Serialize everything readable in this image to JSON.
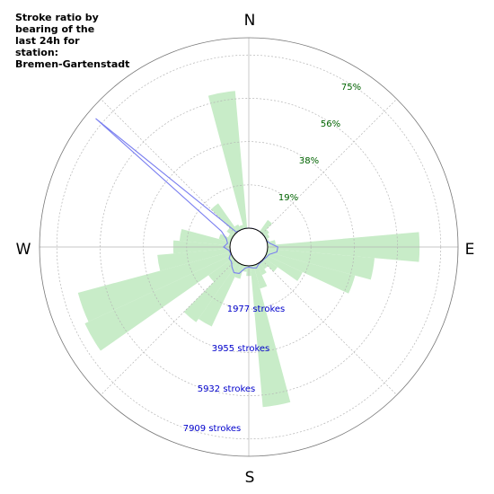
{
  "chart_data": {
    "type": "polar",
    "title_lines": [
      "Stroke ratio by",
      "bearing of the",
      "last 24h for",
      "station:",
      "Bremen-Gartenstadt"
    ],
    "directions": [
      "N",
      "E",
      "S",
      "W"
    ],
    "ratio_ticks": [
      "19%",
      "38%",
      "56%",
      "75%"
    ],
    "stroke_ticks": [
      "1977 strokes",
      "3955 strokes",
      "5932 strokes",
      "7909 strokes"
    ],
    "bins": {
      "width_deg": 10,
      "bearing_deg": [
        0,
        10,
        20,
        30,
        40,
        50,
        60,
        70,
        80,
        90,
        100,
        110,
        120,
        130,
        140,
        150,
        160,
        170,
        180,
        190,
        200,
        210,
        220,
        230,
        240,
        250,
        260,
        270,
        280,
        290,
        300,
        310,
        320,
        330,
        340,
        350
      ],
      "ratio_percent": [
        0,
        0,
        0,
        0,
        7,
        3,
        2,
        1,
        4,
        75,
        53,
        45,
        20,
        8,
        4,
        6,
        12,
        70,
        5,
        3,
        7,
        34,
        36,
        15,
        80,
        78,
        36,
        28,
        25,
        6,
        2,
        4,
        17,
        3,
        2,
        68
      ]
    },
    "strokes_line": {
      "bearing_deg": [
        0,
        10,
        20,
        30,
        40,
        50,
        60,
        70,
        80,
        90,
        100,
        110,
        120,
        130,
        140,
        150,
        160,
        170,
        180,
        190,
        200,
        210,
        220,
        230,
        240,
        250,
        260,
        270,
        280,
        290,
        300,
        310,
        320,
        330,
        340,
        350
      ],
      "strokes": [
        0,
        0,
        0,
        0,
        0,
        0,
        0,
        0,
        130,
        530,
        500,
        150,
        80,
        30,
        30,
        50,
        180,
        120,
        60,
        140,
        480,
        560,
        380,
        200,
        200,
        20,
        60,
        330,
        140,
        260,
        660,
        9380,
        40,
        0,
        0,
        0
      ]
    },
    "ratio_max_percent": 94,
    "strokes_max": 9886,
    "colors": {
      "ratio_fill": "#c8ecc8",
      "strokes_line": "#7a7ff0",
      "ratio_tick_text": "#006400",
      "stroke_tick_text": "#0000cc",
      "grid": "#b5b5b5",
      "axis_circle": "#000000"
    }
  }
}
